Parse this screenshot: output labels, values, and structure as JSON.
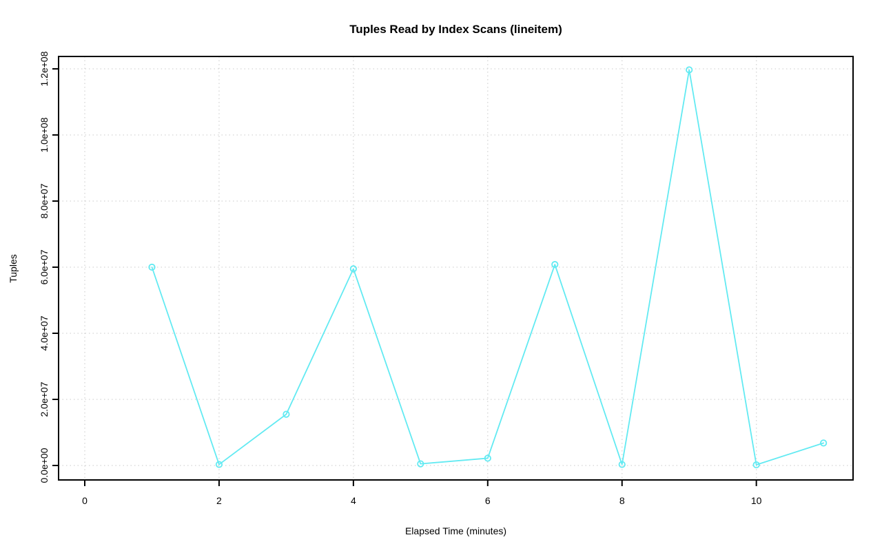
{
  "title": "Tuples Read by Index Scans (lineitem)",
  "chart_data": {
    "type": "line",
    "title": "Tuples Read by Index Scans (lineitem)",
    "xlabel": "Elapsed Time (minutes)",
    "ylabel": "Tuples",
    "x": [
      1,
      2,
      3,
      4,
      5,
      6,
      7,
      8,
      9,
      10,
      11
    ],
    "y": [
      60000000,
      300000,
      15500000,
      59500000,
      500000,
      2200000,
      60800000,
      300000,
      119700000,
      200000,
      6800000
    ],
    "xlim": [
      -0.39,
      11.44
    ],
    "ylim": [
      -4375000,
      123750000
    ],
    "xticks": {
      "values": [
        0,
        2,
        4,
        6,
        8,
        10
      ],
      "labels": [
        "0",
        "2",
        "4",
        "6",
        "8",
        "10"
      ]
    },
    "yticks": {
      "values": [
        0,
        20000000,
        40000000,
        60000000,
        80000000,
        100000000,
        120000000
      ],
      "labels": [
        "0.0e+00",
        "2.0e+07",
        "4.0e+07",
        "6.0e+07",
        "8.0e+07",
        "1.0e+08",
        "1.2e+08"
      ]
    },
    "grid": "dotted gridlines at every x and y tick",
    "legend": "none",
    "marker": "open-circle",
    "colors": {
      "line": "#62eaf2",
      "grid": "#d4d4d4",
      "axis": "#000000",
      "text": "#000000",
      "background": "#ffffff"
    }
  }
}
